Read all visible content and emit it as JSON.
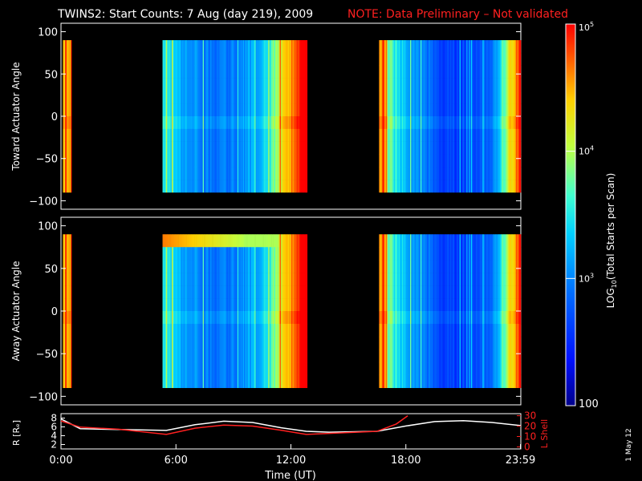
{
  "title": {
    "main": "TWINS2: Start Counts:  7 Aug (day 219), 2009",
    "note": "NOTE: Data Preliminary – Not validated",
    "note_color": "#ff2020"
  },
  "date_stamp": "1 May 12",
  "chart_data": [
    {
      "type": "heatmap",
      "panel": "toward",
      "ylabel": "Toward Actuator Angle",
      "ylim": [
        -110,
        110
      ],
      "yticks": [
        "100",
        "50",
        "0",
        "−50",
        "−100"
      ],
      "ytick_values": [
        100,
        50,
        0,
        -50,
        -100
      ],
      "x_range_hours": [
        0,
        24
      ],
      "data_blocks_hours": [
        [
          0.1,
          0.55
        ],
        [
          5.3,
          12.85
        ],
        [
          16.6,
          24
        ]
      ]
    },
    {
      "type": "heatmap",
      "panel": "away",
      "ylabel": "Away Actuator Angle",
      "ylim": [
        -110,
        110
      ],
      "yticks": [
        "100",
        "50",
        "0",
        "−50",
        "−100"
      ],
      "ytick_values": [
        100,
        50,
        0,
        -50,
        -100
      ],
      "x_range_hours": [
        0,
        24
      ],
      "data_blocks_hours": [
        [
          0.1,
          0.55
        ],
        [
          5.3,
          12.85
        ],
        [
          16.6,
          24
        ]
      ]
    },
    {
      "type": "line",
      "panel": "orbit",
      "ylabel_left": "R [Rₑ]",
      "ylabel_right": "L Shell",
      "yticks_left": [
        "8",
        "6",
        "4",
        "2"
      ],
      "yticks_right": [
        "30",
        "20",
        "10",
        "0"
      ],
      "xlabel": "Time (UT)",
      "xticks": [
        "0:00",
        "6:00",
        "12:00",
        "18:00",
        "23:59"
      ],
      "xtick_hours": [
        0,
        6,
        12,
        18,
        23.98
      ],
      "series": [
        {
          "color": "#ffffff",
          "x": [
            0,
            1,
            3,
            5.5,
            7,
            8.5,
            10,
            11.5,
            12.8,
            14,
            16.5,
            18,
            19.5,
            21,
            22.5,
            24
          ],
          "y": [
            7.8,
            5.6,
            5.4,
            5.2,
            6.5,
            7.3,
            7.0,
            5.8,
            5.0,
            4.8,
            5.0,
            6.2,
            7.2,
            7.4,
            7.0,
            6.3
          ]
        },
        {
          "color": "#ff2020",
          "x": [
            0,
            1,
            3,
            5.5,
            7,
            8.5,
            10,
            11.5,
            12.8,
            14,
            16.5,
            17.5,
            18.1
          ],
          "y": [
            25,
            19,
            17,
            12,
            18,
            21,
            20,
            16,
            12,
            13,
            15,
            22,
            30
          ]
        }
      ]
    }
  ],
  "colorbar": {
    "label": "LOG10(Total Starts per Scan)",
    "label_prefix": "LOG",
    "label_sub": "10",
    "label_suffix": "(Total Starts per Scan)",
    "tick_base": "10",
    "tick_exps": [
      "5",
      "4",
      "3"
    ],
    "tick_plain": "100",
    "range_log": [
      2,
      5
    ]
  }
}
